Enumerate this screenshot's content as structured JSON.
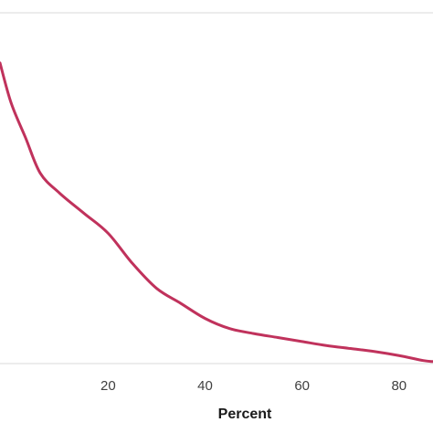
{
  "chart_data": {
    "type": "line",
    "title": "",
    "xlabel": "Percent",
    "ylabel": "",
    "xlim": [
      -2.3,
      87
    ],
    "x_ticks": [
      20,
      40,
      60,
      80
    ],
    "grid": {
      "horizontal": true,
      "vertical": false
    },
    "series": [
      {
        "color": "#c0325c",
        "x": [
          -2.3,
          0,
          3,
          6,
          10,
          15,
          20,
          25,
          30,
          35,
          40,
          45,
          50,
          55,
          60,
          65,
          70,
          75,
          80,
          85,
          87
        ],
        "y": [
          0.3,
          0.26,
          0.225,
          0.19,
          0.17,
          0.15,
          0.13,
          0.1,
          0.075,
          0.06,
          0.045,
          0.035,
          0.03,
          0.026,
          0.022,
          0.018,
          0.015,
          0.012,
          0.008,
          0.003,
          0.002
        ]
      }
    ]
  }
}
